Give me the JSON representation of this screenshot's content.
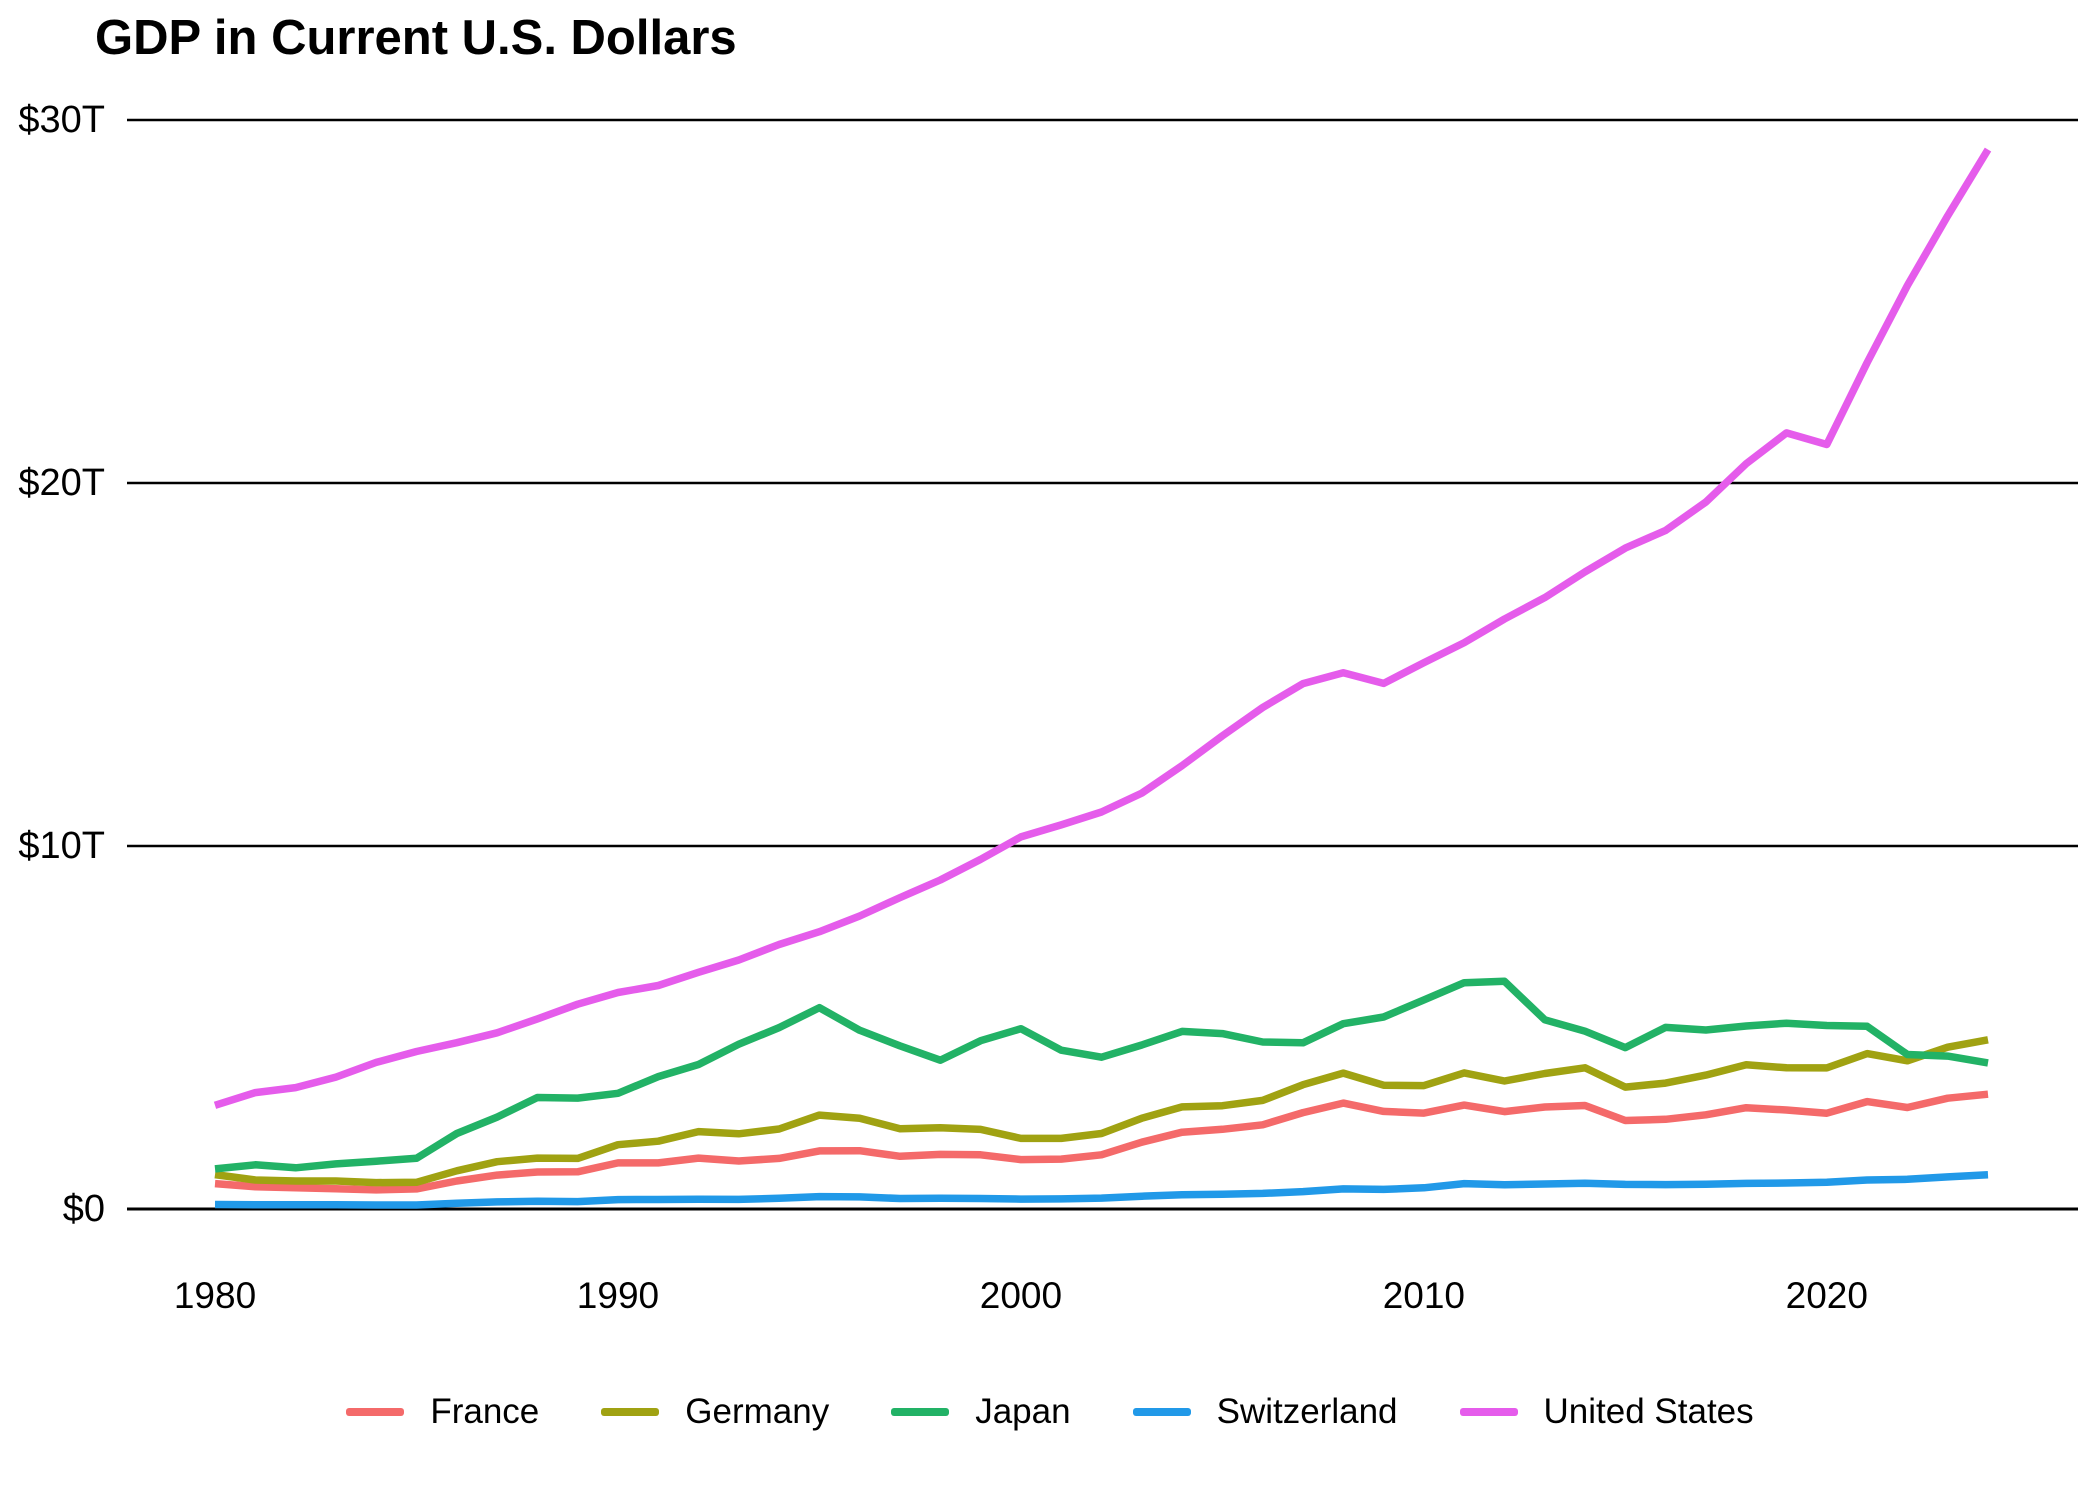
{
  "chart_data": {
    "type": "line",
    "title": "GDP in Current U.S. Dollars",
    "xlabel": "",
    "ylabel": "",
    "x": [
      1980,
      1981,
      1982,
      1983,
      1984,
      1985,
      1986,
      1987,
      1988,
      1989,
      1990,
      1991,
      1992,
      1993,
      1994,
      1995,
      1996,
      1997,
      1998,
      1999,
      2000,
      2001,
      2002,
      2003,
      2004,
      2005,
      2006,
      2007,
      2008,
      2009,
      2010,
      2011,
      2012,
      2013,
      2014,
      2015,
      2016,
      2017,
      2018,
      2019,
      2020,
      2021,
      2022,
      2023,
      2024
    ],
    "x_ticks": [
      1980,
      1990,
      2000,
      2010,
      2020
    ],
    "x_tick_labels": [
      "1980",
      "1990",
      "2000",
      "2010",
      "2020"
    ],
    "y_ticks": [
      0,
      10,
      20,
      30
    ],
    "y_tick_labels": [
      "$0",
      "$10T",
      "$20T",
      "$30T"
    ],
    "ylim": [
      0,
      30
    ],
    "xlim": [
      1980,
      2024
    ],
    "y_unit": "trillions of current U.S. dollars",
    "grid": "horizontal",
    "grid_color": "#000000",
    "axis_text_color": "#000000",
    "background_color": "#ffffff",
    "legend_position": "bottom-center",
    "series": [
      {
        "name": "France",
        "color": "#F46A6A",
        "values": [
          0.701,
          0.615,
          0.584,
          0.559,
          0.527,
          0.553,
          0.771,
          0.934,
          1.018,
          1.025,
          1.269,
          1.269,
          1.401,
          1.322,
          1.394,
          1.601,
          1.605,
          1.452,
          1.503,
          1.492,
          1.362,
          1.376,
          1.494,
          1.84,
          2.115,
          2.196,
          2.32,
          2.657,
          2.918,
          2.69,
          2.642,
          2.861,
          2.683,
          2.811,
          2.852,
          2.439,
          2.472,
          2.595,
          2.79,
          2.728,
          2.639,
          2.959,
          2.796,
          3.052,
          3.162
        ]
      },
      {
        "name": "Germany",
        "color": "#A0A212",
        "values": [
          0.947,
          0.8,
          0.771,
          0.77,
          0.726,
          0.736,
          1.051,
          1.303,
          1.402,
          1.394,
          1.772,
          1.869,
          2.132,
          2.072,
          2.205,
          2.586,
          2.499,
          2.213,
          2.24,
          2.194,
          1.944,
          1.946,
          2.079,
          2.501,
          2.814,
          2.846,
          2.993,
          3.425,
          3.745,
          3.411,
          3.399,
          3.749,
          3.527,
          3.733,
          3.889,
          3.357,
          3.469,
          3.69,
          3.974,
          3.889,
          3.887,
          4.281,
          4.082,
          4.456,
          4.66
        ]
      },
      {
        "name": "Japan",
        "color": "#22B266",
        "values": [
          1.105,
          1.219,
          1.134,
          1.243,
          1.318,
          1.398,
          2.079,
          2.533,
          3.072,
          3.054,
          3.186,
          3.648,
          3.98,
          4.539,
          4.998,
          5.546,
          4.923,
          4.492,
          4.098,
          4.636,
          4.968,
          4.374,
          4.183,
          4.519,
          4.893,
          4.831,
          4.601,
          4.579,
          5.106,
          5.289,
          5.759,
          6.233,
          6.272,
          5.212,
          4.897,
          4.445,
          5.004,
          4.931,
          5.041,
          5.118,
          5.056,
          5.034,
          4.256,
          4.213,
          4.026
        ]
      },
      {
        "name": "Switzerland",
        "color": "#2199E8",
        "values": [
          0.125,
          0.115,
          0.116,
          0.115,
          0.109,
          0.11,
          0.156,
          0.195,
          0.211,
          0.203,
          0.258,
          0.262,
          0.27,
          0.265,
          0.295,
          0.342,
          0.332,
          0.29,
          0.298,
          0.288,
          0.272,
          0.279,
          0.301,
          0.352,
          0.394,
          0.408,
          0.43,
          0.479,
          0.554,
          0.541,
          0.583,
          0.699,
          0.668,
          0.688,
          0.709,
          0.679,
          0.671,
          0.68,
          0.706,
          0.715,
          0.739,
          0.8,
          0.818,
          0.885,
          0.942
        ]
      },
      {
        "name": "United States",
        "color": "#E55CEB",
        "values": [
          2.857,
          3.207,
          3.344,
          3.634,
          4.038,
          4.339,
          4.58,
          4.855,
          5.236,
          5.642,
          5.963,
          6.158,
          6.52,
          6.859,
          7.287,
          7.64,
          8.073,
          8.578,
          9.063,
          9.631,
          10.251,
          10.582,
          10.936,
          11.458,
          12.214,
          13.037,
          13.815,
          14.474,
          14.77,
          14.478,
          15.049,
          15.6,
          16.254,
          16.843,
          17.551,
          18.206,
          18.695,
          19.477,
          20.533,
          21.381,
          21.061,
          23.315,
          25.44,
          27.361,
          29.185
        ]
      }
    ]
  }
}
